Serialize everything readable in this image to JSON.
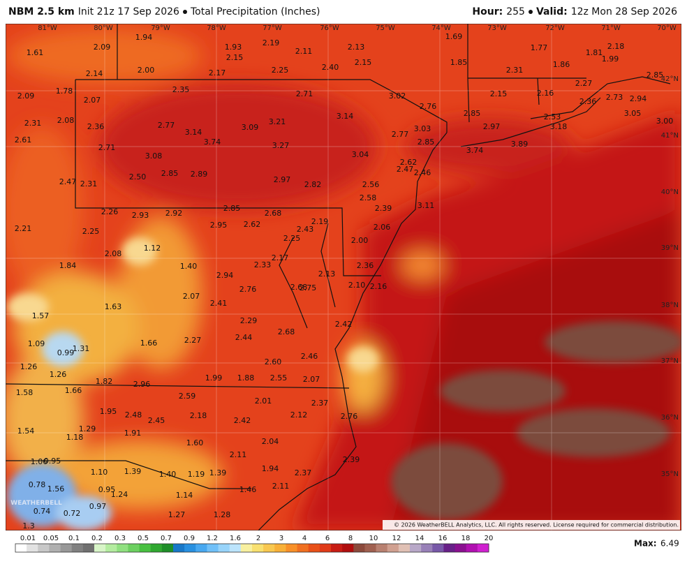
{
  "header": {
    "model": "NBM 2.5 km",
    "init": "Init 21z 17 Sep 2026",
    "title": "Total Precipitation (Inches)",
    "hour_label": "Hour:",
    "hour": "255",
    "valid_label": "Valid:",
    "valid": "12z Mon 28 Sep 2026"
  },
  "longitude_labels": [
    "81°W",
    "80°W",
    "79°W",
    "78°W",
    "77°W",
    "76°W",
    "75°W",
    "74°W",
    "73°W",
    "72°W",
    "71°W",
    "70°W"
  ],
  "latitude_labels": [
    "42°N",
    "41°N",
    "40°N",
    "39°N",
    "38°N",
    "37°N",
    "36°N",
    "35°N"
  ],
  "point_values": [
    "1.61",
    "2.09",
    "1.94",
    "1.93",
    "2.19",
    "2.11",
    "2.13",
    "1.69",
    "1.77",
    "1.81",
    "2.18",
    "1.99",
    "2.15",
    "2.15",
    "1.85",
    "1.86",
    "2.31",
    "2.14",
    "2.00",
    "2.17",
    "2.25",
    "2.40",
    "2.85",
    "1.78",
    "2.09",
    "2.07",
    "2.35",
    "2.71",
    "3.02",
    "2.15",
    "2.16",
    "2.27",
    "2.73",
    "2.94",
    "2.36",
    "2.76",
    "2.85",
    "3.05",
    "3.14",
    "3.00",
    "2.31",
    "2.08",
    "2.36",
    "2.77",
    "3.14",
    "3.09",
    "3.21",
    "2.97",
    "2.53",
    "3.18",
    "3.03",
    "2.61",
    "3.74",
    "2.77",
    "2.85",
    "3.27",
    "2.71",
    "3.08",
    "3.04",
    "3.74",
    "3.89",
    "2.62",
    "2.47",
    "2.46",
    "2.50",
    "2.85",
    "2.89",
    "2.97",
    "2.82",
    "2.47",
    "2.31",
    "2.56",
    "2.58",
    "2.39",
    "3.11",
    "2.26",
    "2.93",
    "2.92",
    "2.85",
    "2.68",
    "2.21",
    "2.25",
    "2.95",
    "2.62",
    "2.43",
    "2.19",
    "2.06",
    "2.25",
    "2.00",
    "1.12",
    "2.08",
    "1.84",
    "1.40",
    "2.17",
    "2.33",
    "2.36",
    "2.94",
    "2.13",
    "2.76",
    "2.68",
    "2.75",
    "2.10",
    "2.16",
    "2.07",
    "1.63",
    "2.41",
    "1.57",
    "2.29",
    "2.42",
    "2.68",
    "2.44",
    "1.09",
    "1.31",
    "0.99",
    "1.66",
    "2.27",
    "2.46",
    "2.60",
    "1.26",
    "1.26",
    "1.82",
    "2.96",
    "1.99",
    "1.88",
    "2.55",
    "2.07",
    "1.58",
    "1.66",
    "2.59",
    "2.01",
    "2.37",
    "1.95",
    "2.48",
    "2.18",
    "2.12",
    "2.76",
    "2.45",
    "2.42",
    "1.54",
    "1.29",
    "1.18",
    "1.91",
    "1.60",
    "2.04",
    "2.11",
    "1.06",
    "0.95",
    "2.39",
    "1.10",
    "1.39",
    "1.40",
    "1.19",
    "1.39",
    "1.94",
    "2.37",
    "0.78",
    "1.56",
    "0.95",
    "1.24",
    "1.14",
    "1.46",
    "2.11",
    "0.97",
    "0.74",
    "0.72",
    "1.27",
    "1.28",
    "1.3"
  ],
  "logo": "WEATHERBELL",
  "copyright": "© 2026 WeatherBELL Analytics, LLC. All rights reserved. License required for commercial distribution.",
  "legend": {
    "labels": [
      0.01,
      0.05,
      0.1,
      0.2,
      0.3,
      0.5,
      0.7,
      0.9,
      1.2,
      1.6,
      2,
      3,
      4,
      6,
      8,
      10,
      12,
      14,
      16,
      18,
      20
    ]
  },
  "max_label": "Max:",
  "max": 6.49
}
